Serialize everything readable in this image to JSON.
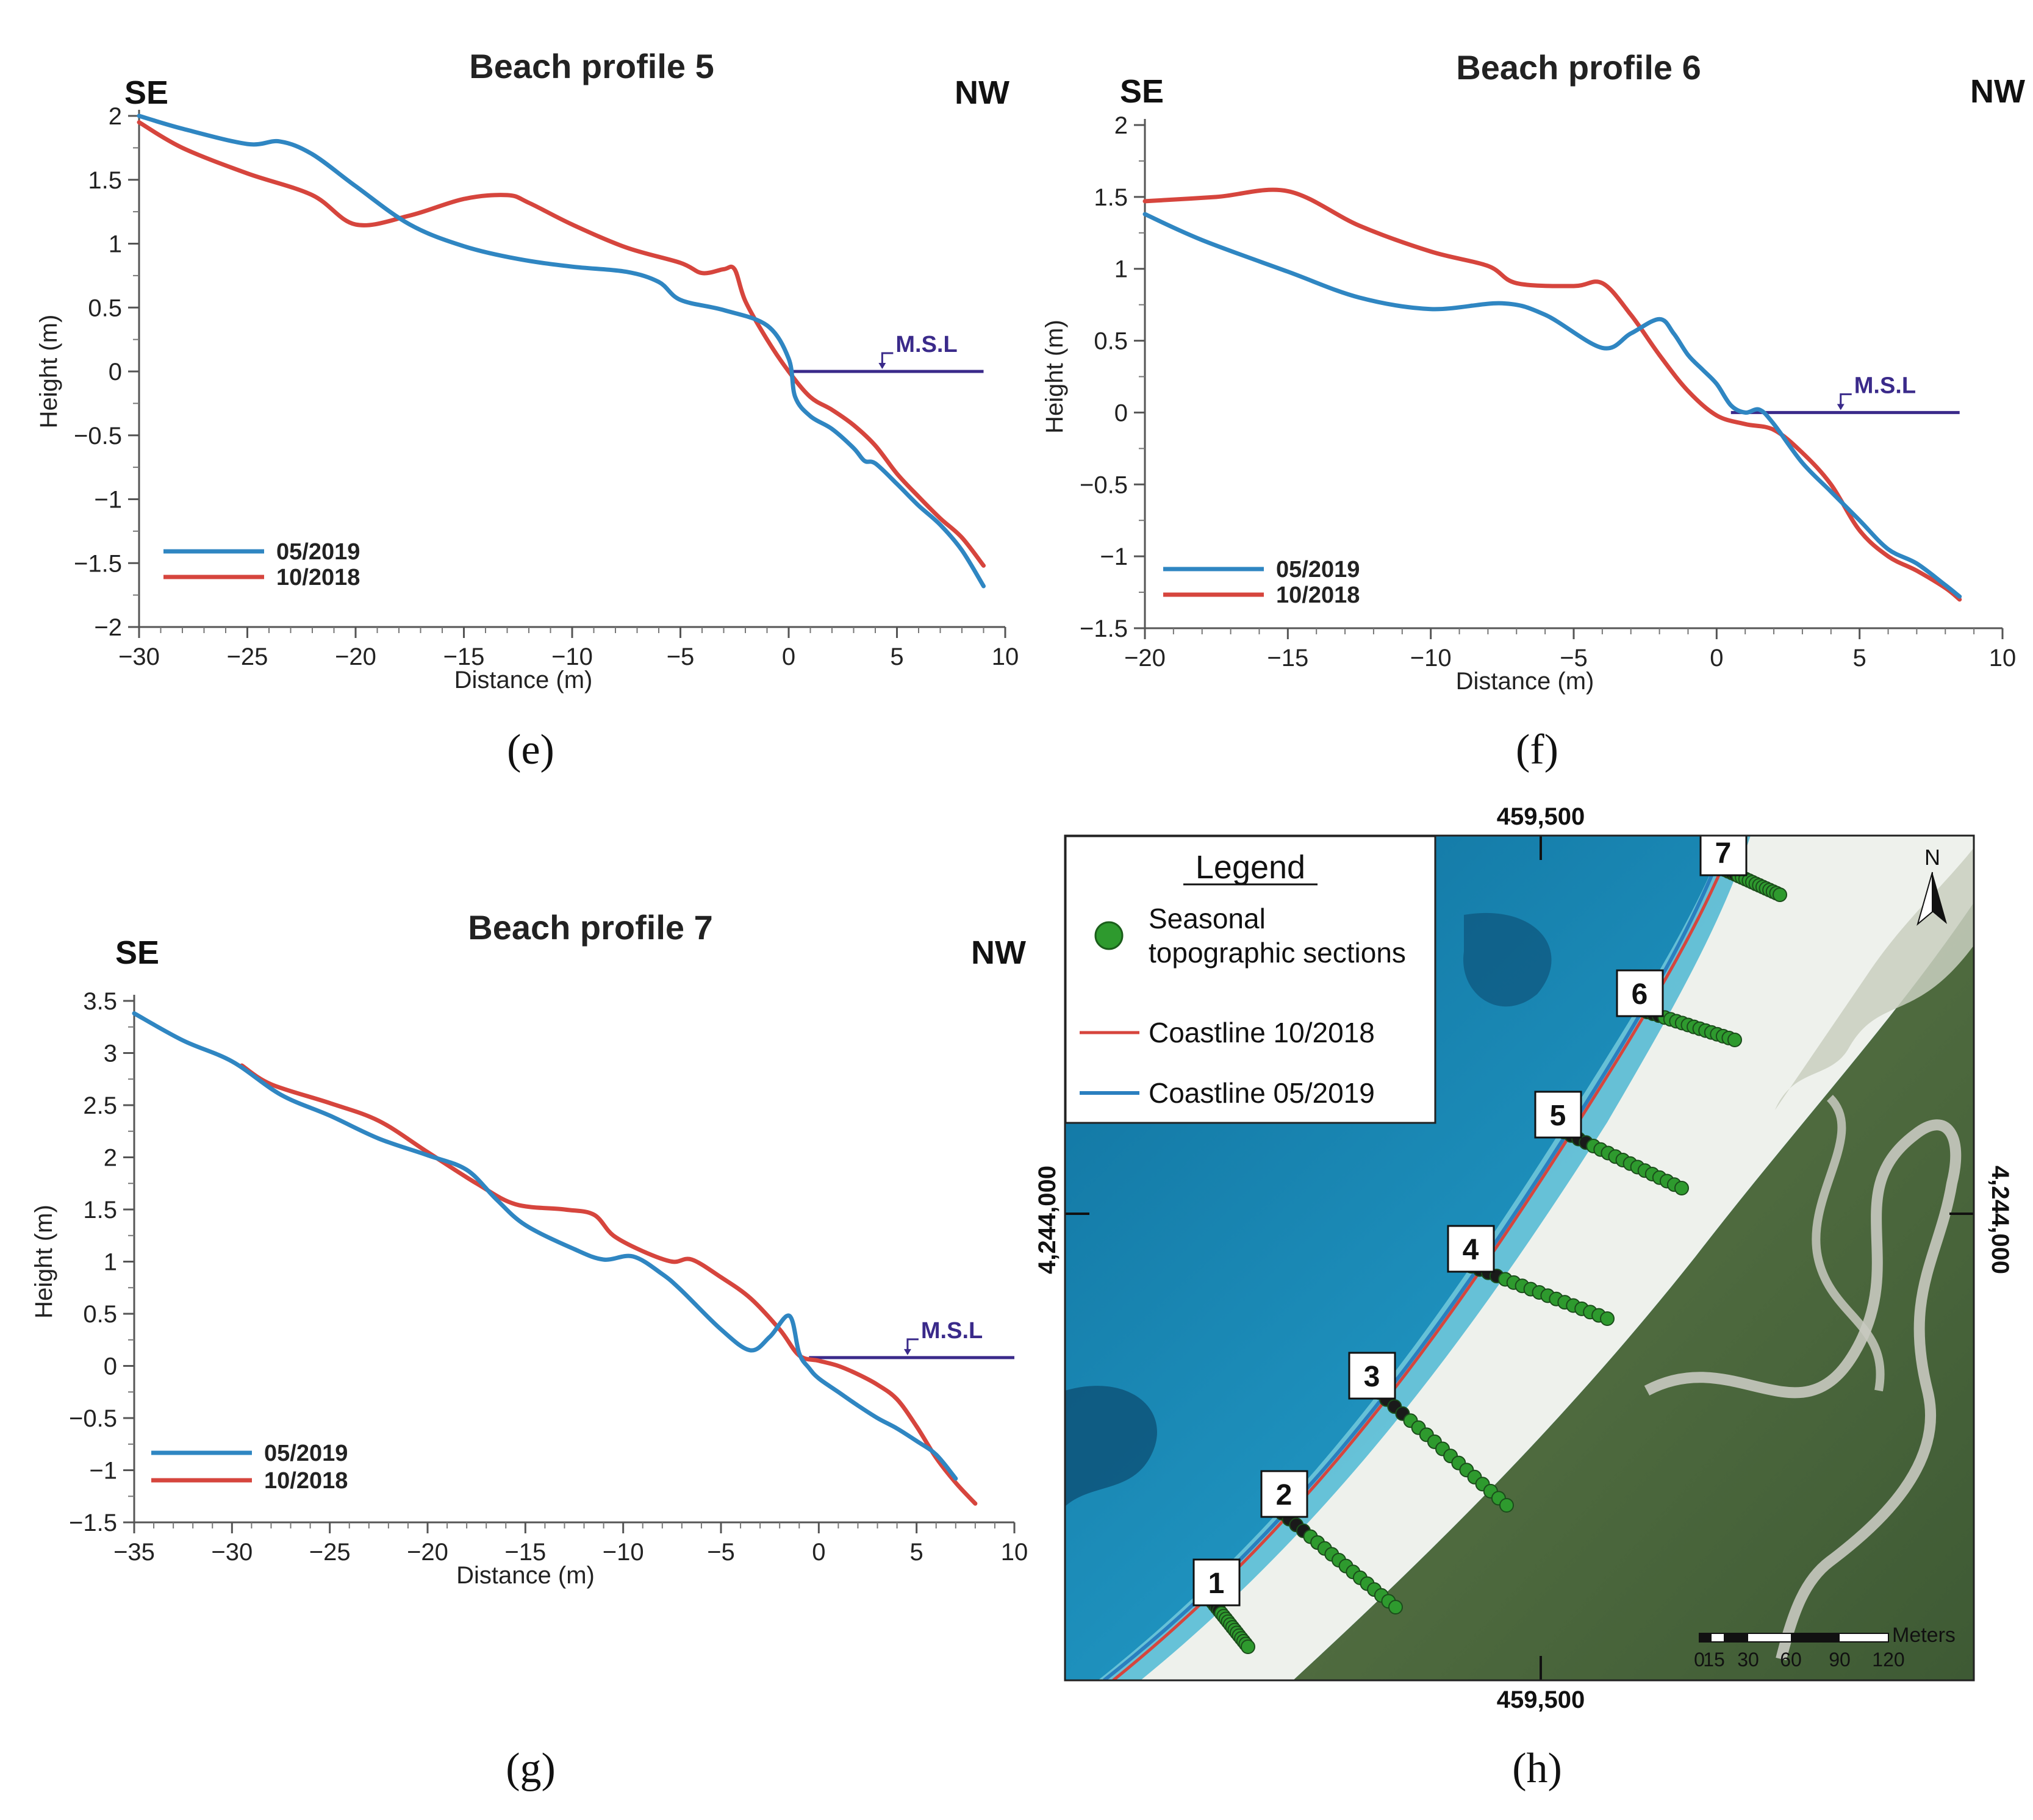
{
  "chart_data": [
    {
      "type": "line",
      "panel": "e",
      "title": "Beach profile 5",
      "dir_left": "SE",
      "dir_right": "NW",
      "xlabel": "Distance (m)",
      "ylabel": "Height (m)",
      "xlim": [
        -30,
        10
      ],
      "ylim": [
        -2,
        2
      ],
      "x_ticks": [
        -30,
        -25,
        -20,
        -15,
        -10,
        -5,
        0,
        5,
        10
      ],
      "y_ticks": [
        2,
        1.5,
        1,
        0.5,
        0,
        -0.5,
        -1,
        -1.5,
        -2
      ],
      "msl_label": "M.S.L",
      "msl": {
        "x_start": 0,
        "x_end": 9,
        "y": 0
      },
      "series": [
        {
          "name": "05/2019",
          "color": "#2f86c2",
          "x": [
            -30,
            -28,
            -25,
            -23.5,
            -22,
            -20,
            -17.5,
            -15,
            -12.5,
            -10,
            -7.5,
            -6,
            -5,
            -3,
            -1,
            0,
            0.3,
            1,
            2,
            3,
            3.5,
            4,
            5,
            6,
            7,
            8,
            9
          ],
          "y": [
            2,
            1.9,
            1.78,
            1.8,
            1.7,
            1.45,
            1.15,
            0.98,
            0.88,
            0.82,
            0.78,
            0.7,
            0.56,
            0.48,
            0.36,
            0.1,
            -0.2,
            -0.35,
            -0.45,
            -0.6,
            -0.7,
            -0.72,
            -0.88,
            -1.05,
            -1.2,
            -1.4,
            -1.68
          ]
        },
        {
          "name": "10/2018",
          "color": "#d6453d",
          "x": [
            -30,
            -28,
            -25,
            -22,
            -20,
            -17.5,
            -15,
            -13,
            -12,
            -10,
            -7.5,
            -5,
            -4,
            -3,
            -2.5,
            -2,
            -1,
            0,
            1,
            2,
            3,
            4,
            5,
            6,
            7,
            8,
            9
          ],
          "y": [
            1.95,
            1.75,
            1.55,
            1.38,
            1.15,
            1.22,
            1.35,
            1.38,
            1.32,
            1.15,
            0.97,
            0.85,
            0.77,
            0.8,
            0.8,
            0.55,
            0.25,
            0.0,
            -0.2,
            -0.3,
            -0.42,
            -0.58,
            -0.8,
            -0.98,
            -1.15,
            -1.3,
            -1.52
          ]
        }
      ]
    },
    {
      "type": "line",
      "panel": "f",
      "title": "Beach profile 6",
      "dir_left": "SE",
      "dir_right": "NW",
      "xlabel": "Distance (m)",
      "ylabel": "Height (m)",
      "xlim": [
        -20,
        10
      ],
      "ylim": [
        -1.5,
        2
      ],
      "x_ticks": [
        -20,
        -15,
        -10,
        -5,
        0,
        5,
        10
      ],
      "y_ticks": [
        2,
        1.5,
        1,
        0.5,
        0,
        -0.5,
        -1,
        -1.5
      ],
      "msl_label": "M.S.L",
      "msl": {
        "x_start": 0.5,
        "x_end": 8.5,
        "y": 0
      },
      "series": [
        {
          "name": "05/2019",
          "color": "#2f86c2",
          "x": [
            -20,
            -18,
            -15,
            -12.5,
            -10,
            -7.5,
            -6,
            -4,
            -3,
            -2,
            -1.5,
            -1,
            -0.5,
            0,
            0.5,
            1,
            1.5,
            2,
            3,
            4,
            5,
            6,
            7,
            8,
            8.5
          ],
          "y": [
            1.38,
            1.2,
            0.98,
            0.8,
            0.72,
            0.76,
            0.68,
            0.45,
            0.55,
            0.65,
            0.55,
            0.4,
            0.3,
            0.2,
            0.05,
            0.0,
            0.02,
            -0.08,
            -0.35,
            -0.55,
            -0.75,
            -0.95,
            -1.05,
            -1.2,
            -1.28
          ]
        },
        {
          "name": "10/2018",
          "color": "#d6453d",
          "x": [
            -20,
            -17.5,
            -15,
            -12.5,
            -10,
            -8,
            -7,
            -5,
            -4,
            -3,
            -2,
            -1,
            0,
            1,
            2,
            3,
            4,
            5,
            6,
            7,
            8,
            8.5
          ],
          "y": [
            1.47,
            1.5,
            1.54,
            1.3,
            1.12,
            1.02,
            0.9,
            0.88,
            0.9,
            0.68,
            0.4,
            0.15,
            -0.02,
            -0.08,
            -0.12,
            -0.28,
            -0.5,
            -0.82,
            -1.0,
            -1.1,
            -1.22,
            -1.3
          ]
        }
      ]
    },
    {
      "type": "line",
      "panel": "g",
      "title": "Beach profile 7",
      "dir_left": "SE",
      "dir_right": "NW",
      "xlabel": "Distance (m)",
      "ylabel": "Height (m)",
      "xlim": [
        -35,
        10
      ],
      "ylim": [
        -1.5,
        3.5
      ],
      "x_ticks": [
        -35,
        -30,
        -25,
        -20,
        -15,
        -10,
        -5,
        0,
        5,
        10
      ],
      "y_ticks": [
        3.5,
        3,
        2.5,
        2,
        1.5,
        1,
        0.5,
        0,
        -0.5,
        -1,
        -1.5
      ],
      "msl_label": "M.S.L",
      "msl": {
        "x_start": -0.5,
        "x_end": 10,
        "y": 0.08
      },
      "series": [
        {
          "name": "05/2019",
          "color": "#2f86c2",
          "x": [
            -35,
            -32.5,
            -30,
            -27.5,
            -25,
            -22.5,
            -20,
            -18,
            -16.5,
            -15,
            -12.5,
            -11,
            -9.5,
            -8,
            -7,
            -5,
            -3.5,
            -2.5,
            -1.5,
            -1,
            -0.5,
            0,
            1,
            2,
            3,
            4,
            5,
            6,
            7
          ],
          "y": [
            3.38,
            3.12,
            2.92,
            2.6,
            2.4,
            2.18,
            2.02,
            1.88,
            1.6,
            1.35,
            1.12,
            1.02,
            1.05,
            0.88,
            0.72,
            0.35,
            0.15,
            0.28,
            0.48,
            0.12,
            -0.02,
            -0.12,
            -0.25,
            -0.38,
            -0.5,
            -0.6,
            -0.72,
            -0.85,
            -1.08
          ]
        },
        {
          "name": "10/2018",
          "color": "#d6453d",
          "x": [
            -29.5,
            -28,
            -25,
            -22.5,
            -20,
            -17.5,
            -15.5,
            -13,
            -11.5,
            -10.5,
            -9,
            -7.5,
            -6.5,
            -5,
            -3.5,
            -2,
            -1,
            0,
            1,
            2,
            3,
            4,
            5,
            6,
            7,
            8
          ],
          "y": [
            2.88,
            2.7,
            2.52,
            2.35,
            2.05,
            1.75,
            1.55,
            1.5,
            1.45,
            1.25,
            1.1,
            1.0,
            1.02,
            0.85,
            0.65,
            0.35,
            0.1,
            0.05,
            0.0,
            -0.08,
            -0.18,
            -0.32,
            -0.58,
            -0.88,
            -1.12,
            -1.32
          ]
        }
      ]
    }
  ],
  "captions": {
    "e": "(e)",
    "f": "(f)",
    "g": "(g)",
    "h": "(h)"
  },
  "map": {
    "legend_title": "Legend",
    "legend_sections_line1": "Seasonal",
    "legend_sections_line2": "topographic sections",
    "legend_coast_2018": "Coastline 10/2018",
    "legend_coast_2019": "Coastline 05/2019",
    "coord_top": "459,500",
    "coord_bottom": "459,500",
    "coord_left": "4,244,000",
    "coord_right": "4,244,000",
    "north_label": "N",
    "scale_unit": "Meters",
    "scale_labels": [
      "0",
      "15",
      "30",
      "60",
      "90",
      "120"
    ],
    "section_labels": [
      "1",
      "2",
      "3",
      "4",
      "5",
      "6",
      "7"
    ],
    "colors": {
      "sea": "#1b8ab8",
      "sea_shallow": "#7fd2e0",
      "sand": "#eef1ec",
      "vegetation": "#4d6a3f",
      "coast_2018": "#d6453d",
      "coast_2019": "#2a7fbf",
      "section_point": "#2e9a2e"
    }
  }
}
